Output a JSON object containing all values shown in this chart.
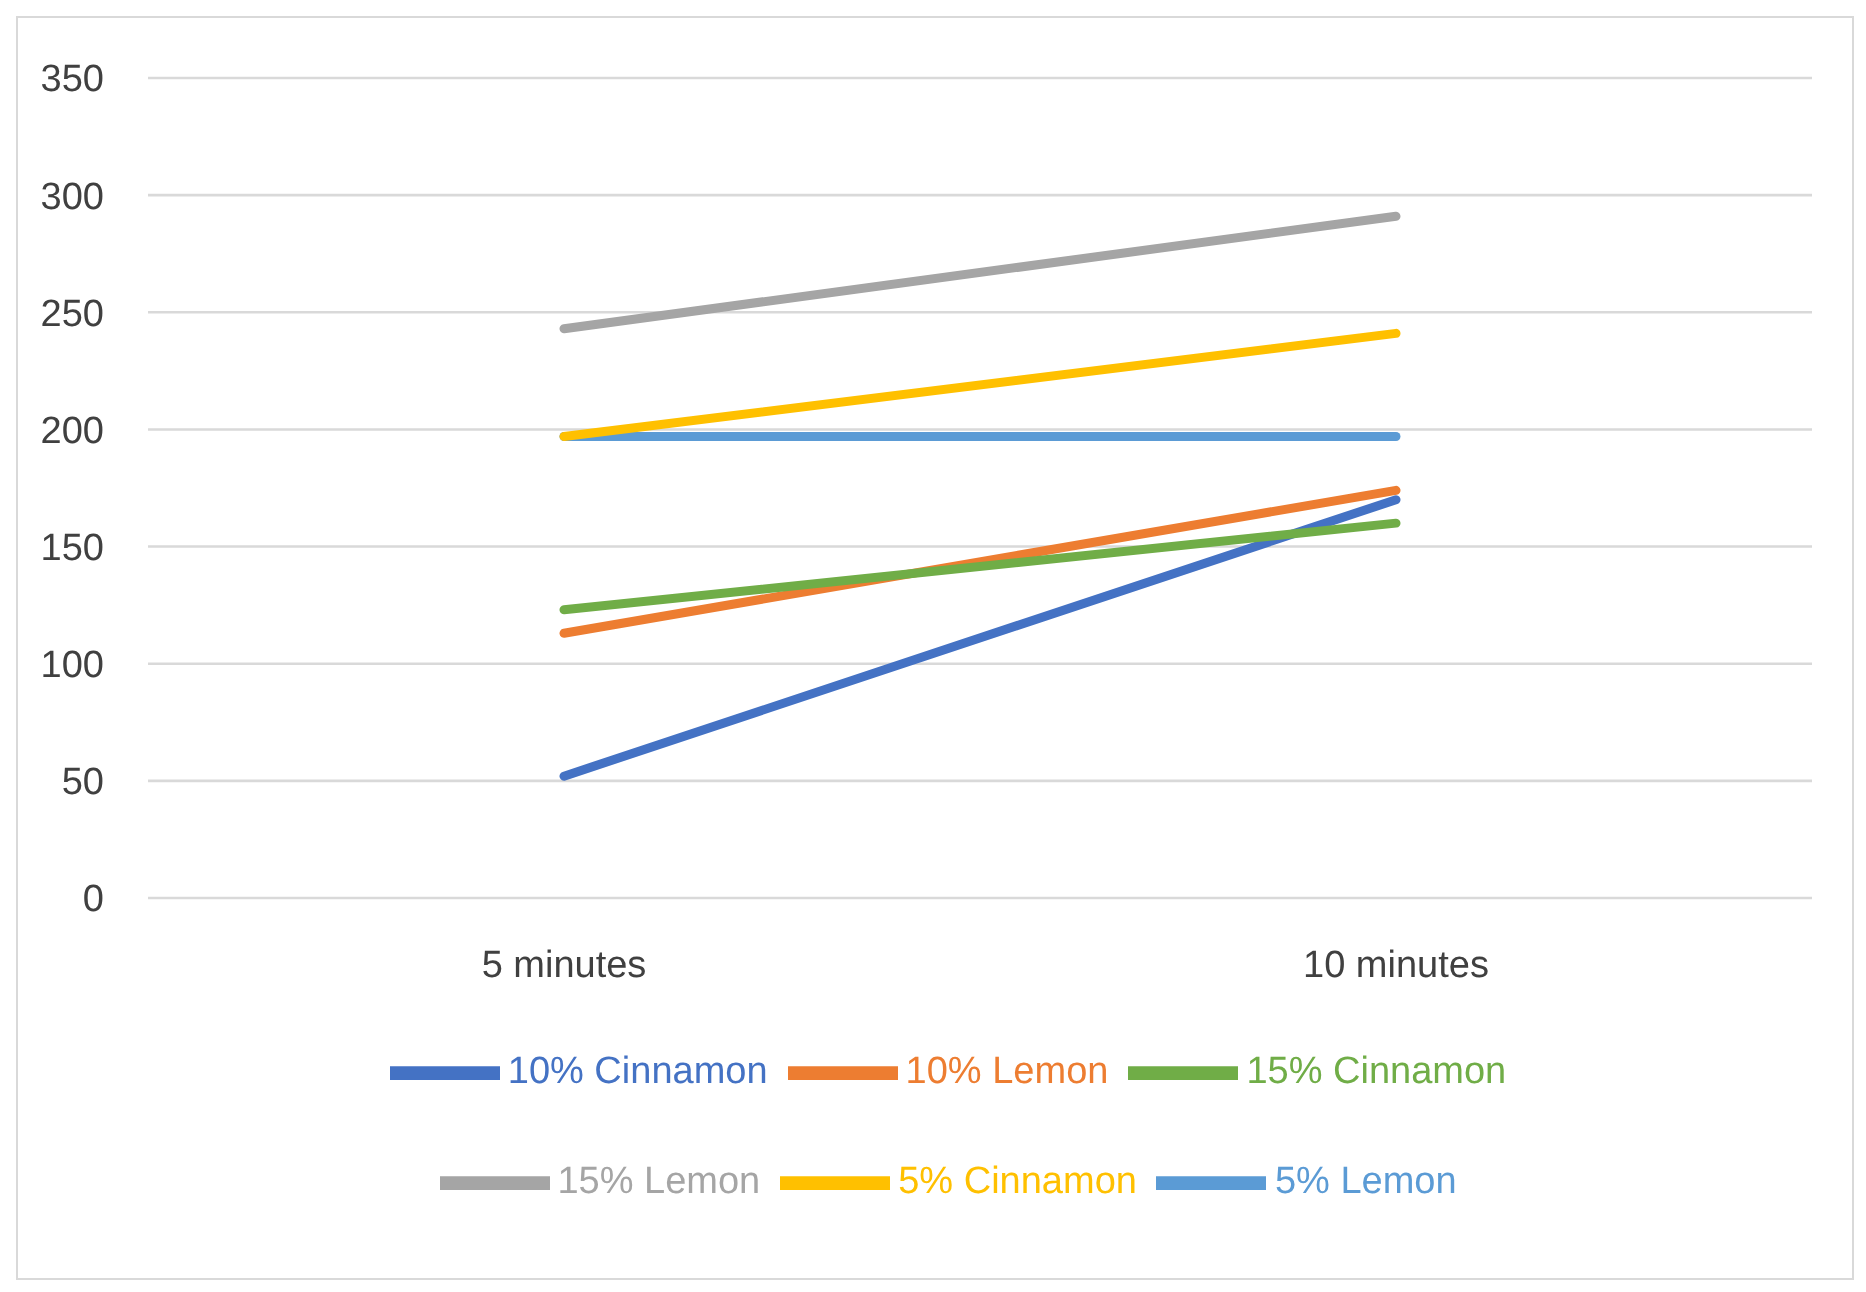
{
  "chart_data": {
    "type": "line",
    "categories": [
      "5 minutes",
      "10 minutes"
    ],
    "series": [
      {
        "name": "5% Lemon",
        "color": "#5b9bd5",
        "values": [
          197,
          197
        ]
      },
      {
        "name": "10% Lemon",
        "color": "#ed7d31",
        "values": [
          113,
          174
        ]
      },
      {
        "name": "15% Lemon",
        "color": "#a5a5a5",
        "values": [
          243,
          291
        ]
      },
      {
        "name": "5% Cinnamon",
        "color": "#ffc000",
        "values": [
          197,
          241
        ]
      },
      {
        "name": "10% Cinnamon",
        "color": "#4472c4",
        "values": [
          52,
          170
        ]
      },
      {
        "name": "15% Cinnamon",
        "color": "#70ad47",
        "values": [
          123,
          160
        ]
      }
    ],
    "ylim": [
      0,
      350
    ],
    "yticks": [
      0,
      50,
      100,
      150,
      200,
      250,
      300,
      350
    ],
    "grid": "y",
    "legend": "bottom",
    "marker": "none",
    "line_style": "solid"
  }
}
